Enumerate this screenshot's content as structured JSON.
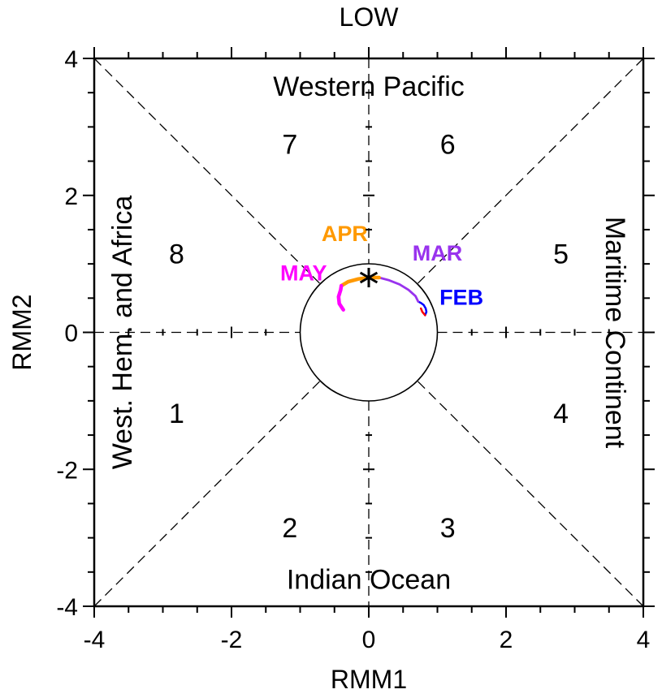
{
  "chart_data": {
    "type": "line",
    "title": "LOW",
    "xlabel": "RMM1",
    "ylabel": "RMM2",
    "xlim": [
      -4,
      4
    ],
    "ylim": [
      -4,
      4
    ],
    "xticks": [
      -4,
      -2,
      0,
      2,
      4
    ],
    "yticks": [
      -4,
      -2,
      0,
      2,
      4
    ],
    "xtick_labels": [
      "-4",
      "-2",
      "0",
      "2",
      "4"
    ],
    "ytick_labels": [
      "-4",
      "-2",
      "0",
      "2",
      "4"
    ],
    "unit_circle_radius": 1,
    "regions": [
      {
        "name": "top",
        "label": "Western Pacific",
        "x": 0,
        "y": 3.6
      },
      {
        "name": "bottom",
        "label": "Indian Ocean",
        "x": 0,
        "y": -3.6
      },
      {
        "name": "left",
        "label": "West. Hem. and Africa",
        "x": -3.6,
        "y": 0
      },
      {
        "name": "right",
        "label": "Maritime Continent",
        "x": 3.6,
        "y": 0
      }
    ],
    "phases": [
      {
        "label": "1",
        "x": -2.8,
        "y": -1.18
      },
      {
        "label": "2",
        "x": -1.15,
        "y": -2.85
      },
      {
        "label": "3",
        "x": 1.15,
        "y": -2.85
      },
      {
        "label": "4",
        "x": 2.8,
        "y": -1.18
      },
      {
        "label": "5",
        "x": 2.8,
        "y": 1.15
      },
      {
        "label": "6",
        "x": 1.15,
        "y": 2.75
      },
      {
        "label": "7",
        "x": -1.15,
        "y": 2.75
      },
      {
        "label": "8",
        "x": -2.8,
        "y": 1.15
      }
    ],
    "series": [
      {
        "name": "FEB",
        "color": "#0000ff",
        "label_pos": [
          1.35,
          0.52
        ],
        "x": [
          0.72,
          0.76,
          0.8,
          0.83,
          0.84,
          0.82
        ],
        "y": [
          0.45,
          0.43,
          0.4,
          0.35,
          0.3,
          0.25
        ]
      },
      {
        "name": "MAR",
        "color": "#9933ee",
        "label_pos": [
          1.0,
          1.17
        ],
        "x": [
          0.15,
          0.3,
          0.45,
          0.58,
          0.68,
          0.72
        ],
        "y": [
          0.8,
          0.76,
          0.7,
          0.62,
          0.53,
          0.45
        ]
      },
      {
        "name": "APR",
        "color": "#ff9900",
        "label_pos": [
          -0.35,
          1.45
        ],
        "x": [
          -0.4,
          -0.3,
          -0.15,
          0.0,
          0.15
        ],
        "y": [
          0.68,
          0.74,
          0.78,
          0.8,
          0.8
        ]
      },
      {
        "name": "MAY",
        "color": "#ff00ff",
        "label_pos": [
          -0.95,
          0.88
        ],
        "x": [
          -0.37,
          -0.43,
          -0.44,
          -0.41,
          -0.4
        ],
        "y": [
          0.33,
          0.42,
          0.52,
          0.62,
          0.68
        ]
      }
    ],
    "end_marker": {
      "symbol": "asterisk",
      "x": 0.0,
      "y": 0.8
    },
    "extra_red_point": {
      "color": "#ff0000",
      "x": [
        0.82,
        0.78,
        0.76
      ],
      "y": [
        0.25,
        0.3,
        0.35
      ]
    }
  }
}
